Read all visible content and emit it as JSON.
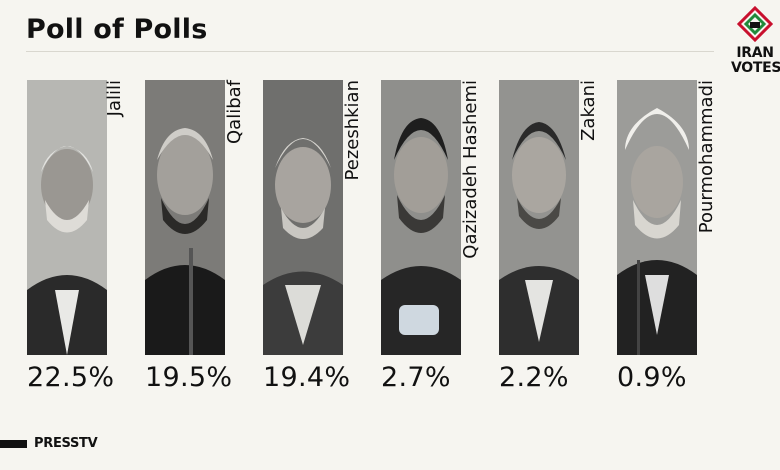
{
  "title": "Poll of Polls",
  "logo": {
    "line1": "IRAN",
    "line2": "VOTES"
  },
  "footer": {
    "brand": "PRESSTV"
  },
  "colors": {
    "background": "#f6f5f0",
    "text": "#111111",
    "logo_red": "#c8102e",
    "logo_green": "#1f8a3a"
  },
  "chart_data": {
    "type": "bar",
    "categories": [
      "Jalili",
      "Qalibaf",
      "Pezeshkian",
      "Qazizadeh Hashemi",
      "Zakani",
      "Pourmohammadi"
    ],
    "values": [
      22.5,
      19.5,
      19.4,
      2.7,
      2.2,
      0.9
    ],
    "value_labels": [
      "22.5%",
      "19.5%",
      "19.4%",
      "2.7%",
      "2.2%",
      "0.9%"
    ],
    "title": "Poll of Polls"
  }
}
